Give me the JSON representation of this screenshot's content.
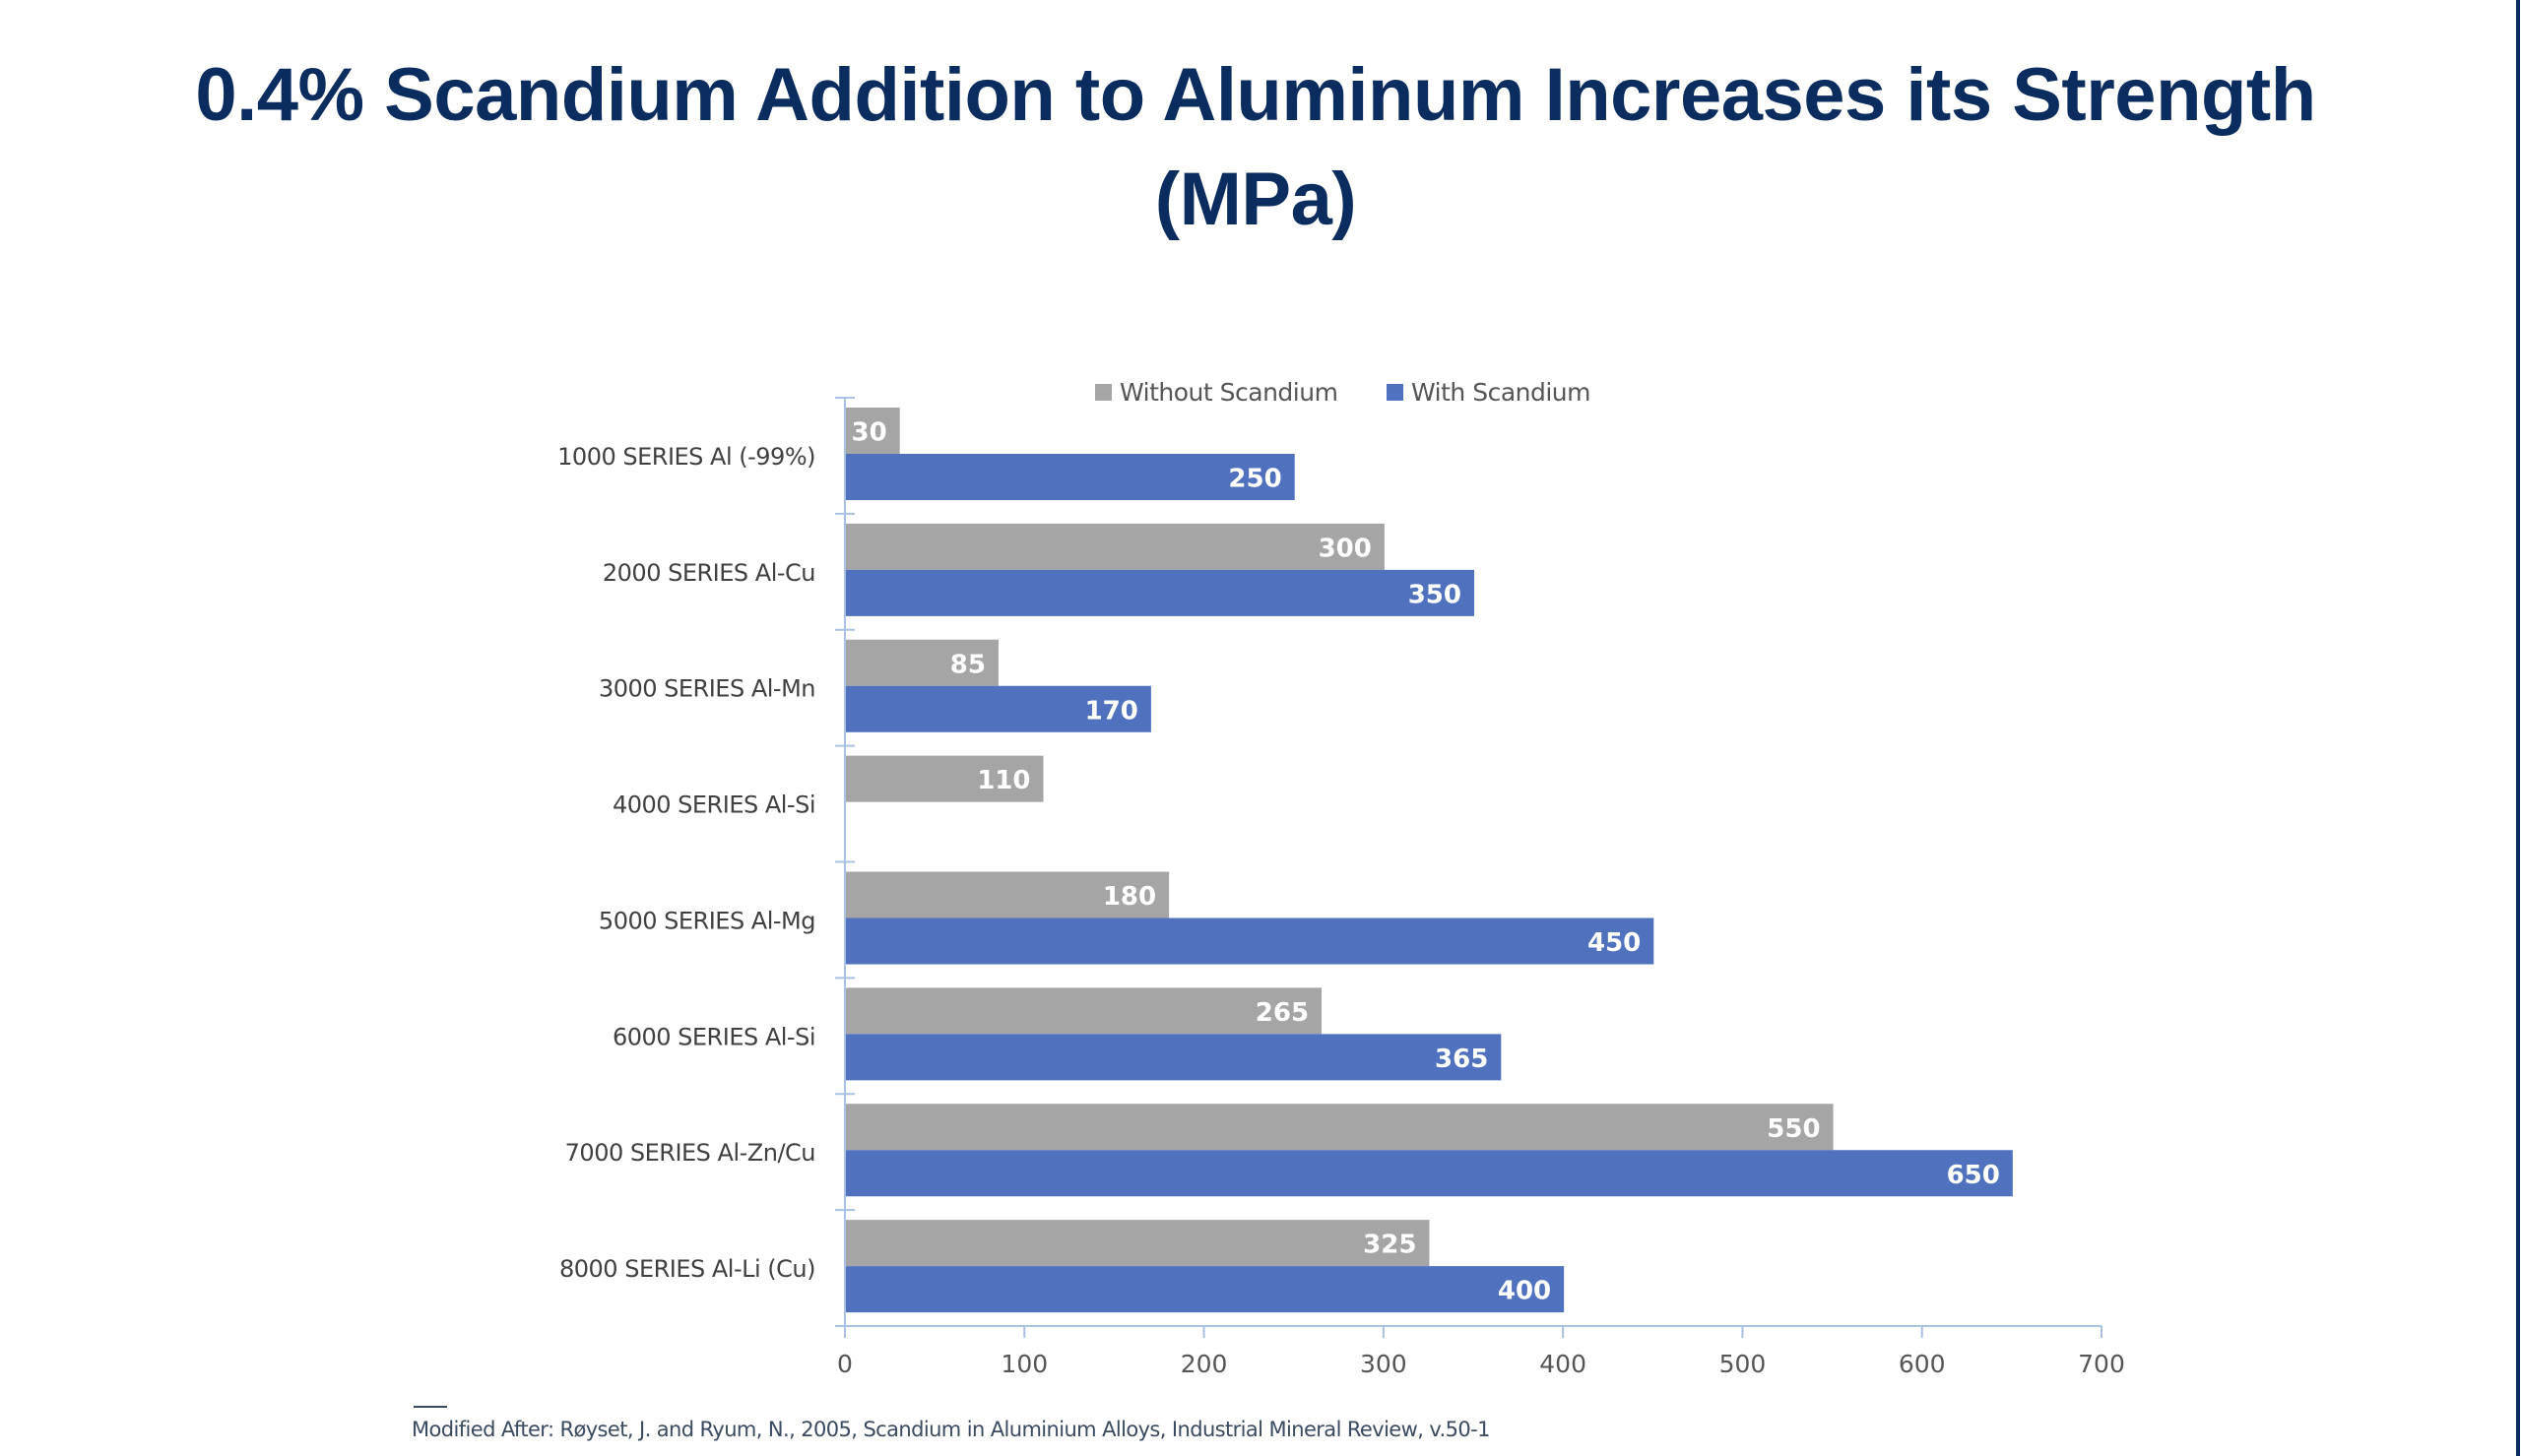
{
  "chart_data": {
    "type": "bar",
    "orientation": "horizontal",
    "title": "0.4% Scandium Addition to Aluminum Increases its Strength",
    "subtitle": "(MPa)",
    "categories": [
      "1000 SERIES Al (-99%)",
      "2000 SERIES Al-Cu",
      "3000 SERIES Al-Mn",
      "4000 SERIES Al-Si",
      "5000 SERIES Al-Mg",
      "6000 SERIES Al-Si",
      "7000 SERIES Al-Zn/Cu",
      "8000 SERIES Al-Li (Cu)"
    ],
    "series": [
      {
        "name": "Without Scandium",
        "color": "#a5a5a5",
        "values": [
          30,
          300,
          85,
          110,
          180,
          265,
          550,
          325
        ]
      },
      {
        "name": "With Scandium",
        "color": "#4f71be",
        "values": [
          250,
          350,
          170,
          null,
          450,
          365,
          650,
          400
        ]
      }
    ],
    "xlim": [
      0,
      700
    ],
    "xticks": [
      0,
      100,
      200,
      300,
      400,
      500,
      600,
      700
    ],
    "grid": false,
    "legend": "top",
    "data_labels": true
  },
  "footnote": "Modified After: Røyset, J. and Ryum, N., 2005, Scandium in Aluminium Alloys, Industrial Mineral Review, v.50-1"
}
